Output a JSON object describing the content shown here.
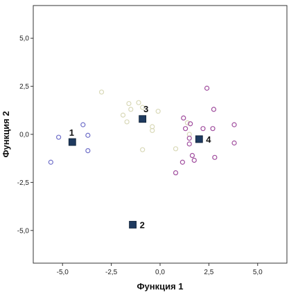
{
  "chart_data": {
    "type": "scatter",
    "title": "",
    "xlabel": "Функция 1",
    "ylabel": "Функция 2",
    "xlim": [
      -6.5,
      6.5
    ],
    "ylim": [
      -6.7,
      6.7
    ],
    "x_ticks": [
      -5,
      -2.5,
      0,
      2.5,
      5
    ],
    "y_ticks": [
      -5,
      -2.5,
      0,
      2.5,
      5
    ],
    "x_tick_labels": [
      "-5,0",
      "-2,5",
      "0,0",
      "2,5",
      "5,0"
    ],
    "y_tick_labels": [
      "-5,0",
      "-2,5",
      "0,0",
      "2,5",
      "5,0"
    ],
    "grid": false,
    "series": [
      {
        "color": "#6f6fc9",
        "marker": "open-circle",
        "points": [
          [
            -5.6,
            -1.45
          ],
          [
            -5.2,
            -0.15
          ],
          [
            -3.95,
            0.5
          ],
          [
            -3.7,
            -0.05
          ],
          [
            -3.7,
            -0.85
          ]
        ]
      },
      {
        "color": "#d9d9b8",
        "marker": "open-circle",
        "points": [
          [
            -3.0,
            2.2
          ],
          [
            -1.9,
            1.0
          ],
          [
            -1.7,
            0.65
          ],
          [
            -1.6,
            1.6
          ],
          [
            -1.5,
            1.3
          ],
          [
            -1.1,
            1.65
          ],
          [
            -0.9,
            1.4
          ],
          [
            -0.9,
            -0.8
          ],
          [
            -0.4,
            0.4
          ],
          [
            -0.4,
            0.2
          ],
          [
            -0.1,
            1.2
          ],
          [
            0.8,
            -0.75
          ],
          [
            1.4,
            0.6
          ],
          [
            1.5,
            0.0
          ]
        ]
      },
      {
        "color": "#a04d9e",
        "marker": "open-circle",
        "points": [
          [
            0.8,
            -2.0
          ],
          [
            1.15,
            -1.45
          ],
          [
            1.2,
            0.85
          ],
          [
            1.3,
            0.3
          ],
          [
            1.5,
            -0.2
          ],
          [
            1.5,
            -0.5
          ],
          [
            1.55,
            0.55
          ],
          [
            1.65,
            -1.1
          ],
          [
            1.75,
            -1.35
          ],
          [
            2.2,
            0.3
          ],
          [
            2.4,
            2.4
          ],
          [
            2.7,
            0.3
          ],
          [
            2.75,
            1.3
          ],
          [
            2.8,
            -1.2
          ],
          [
            3.8,
            0.5
          ],
          [
            3.8,
            -0.45
          ]
        ]
      }
    ],
    "centroids": {
      "color": "#1e3a5f",
      "marker": "filled-square",
      "points": [
        {
          "label": "1",
          "x": -4.5,
          "y": -0.4
        },
        {
          "label": "2",
          "x": -1.4,
          "y": -4.7
        },
        {
          "label": "3",
          "x": -0.9,
          "y": 0.8
        },
        {
          "label": "4",
          "x": 2.0,
          "y": -0.25
        }
      ]
    }
  }
}
